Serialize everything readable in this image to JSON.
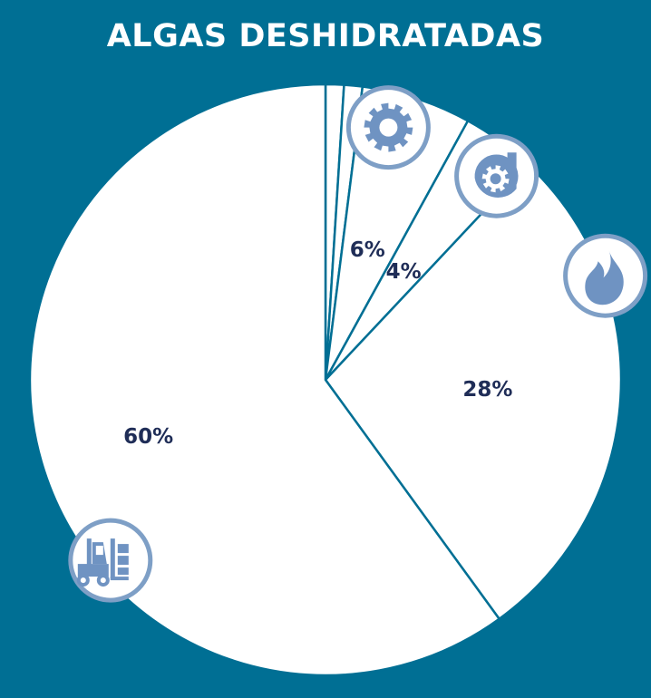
{
  "chart_data": {
    "type": "pie",
    "title": "ALGAS DESHIDRATADAS",
    "start": "top",
    "direction": "clockwise",
    "slices": [
      {
        "value": 1,
        "label": "",
        "icon": ""
      },
      {
        "value": 1,
        "label": "",
        "icon": ""
      },
      {
        "value": 6,
        "label": "6%",
        "icon": "gear-icon"
      },
      {
        "value": 4,
        "label": "4%",
        "icon": "turbine-gear-icon"
      },
      {
        "value": 28,
        "label": "28%",
        "icon": "flame-icon"
      },
      {
        "value": 60,
        "label": "60%",
        "icon": "forklift-icon"
      }
    ],
    "colors": {
      "background": "#006f94",
      "slice": "#ffffff",
      "label": "#1f2d57",
      "icon": "#6f93c2",
      "icon_ring": "#7e9fc6"
    }
  }
}
